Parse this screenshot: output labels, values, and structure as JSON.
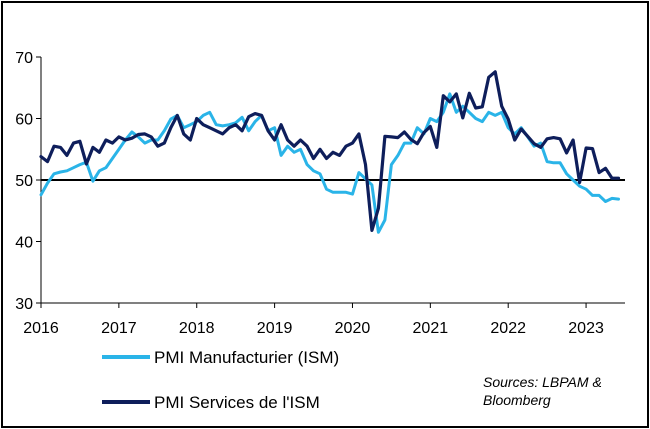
{
  "chart_data": {
    "type": "line",
    "title": "",
    "xlabel": "",
    "ylabel": "",
    "ylim": [
      30,
      70
    ],
    "xlim": [
      2016,
      2023.5
    ],
    "y_ticks": [
      30,
      40,
      50,
      60,
      70
    ],
    "y_tick_labels": [
      "30",
      "40",
      "50",
      "60",
      "70"
    ],
    "x_ticks": [
      2016,
      2017,
      2018,
      2019,
      2020,
      2021,
      2022,
      2023
    ],
    "x_tick_labels": [
      "2016",
      "2017",
      "2018",
      "2019",
      "2020",
      "2021",
      "2022",
      "2023"
    ],
    "reference_line": 50,
    "grid": false,
    "legend_position": "bottom-left",
    "source_lines": [
      "Sources: LBPAM &",
      "Bloomberg"
    ],
    "series": [
      {
        "name": "PMI Manufacturier (ISM)",
        "color": "#2AB4E8",
        "x": [
          2016,
          2016.083,
          2016.167,
          2016.25,
          2016.333,
          2016.417,
          2016.5,
          2016.583,
          2016.667,
          2016.75,
          2016.833,
          2016.917,
          2017,
          2017.083,
          2017.167,
          2017.25,
          2017.333,
          2017.417,
          2017.5,
          2017.583,
          2017.667,
          2017.75,
          2017.833,
          2017.917,
          2018,
          2018.083,
          2018.167,
          2018.25,
          2018.333,
          2018.417,
          2018.5,
          2018.583,
          2018.667,
          2018.75,
          2018.833,
          2018.917,
          2019,
          2019.083,
          2019.167,
          2019.25,
          2019.333,
          2019.417,
          2019.5,
          2019.583,
          2019.667,
          2019.75,
          2019.833,
          2019.917,
          2020,
          2020.083,
          2020.167,
          2020.25,
          2020.333,
          2020.417,
          2020.5,
          2020.583,
          2020.667,
          2020.75,
          2020.833,
          2020.917,
          2021,
          2021.083,
          2021.167,
          2021.25,
          2021.333,
          2021.417,
          2021.5,
          2021.583,
          2021.667,
          2021.75,
          2021.833,
          2021.917,
          2022,
          2022.083,
          2022.167,
          2022.25,
          2022.333,
          2022.417,
          2022.5,
          2022.583,
          2022.667,
          2022.75,
          2022.833,
          2022.917,
          2023,
          2023.083,
          2023.167,
          2023.25,
          2023.333,
          2023.417
        ],
        "values": [
          47.6,
          49.5,
          51.0,
          51.3,
          51.5,
          52.0,
          52.5,
          52.9,
          49.8,
          51.5,
          52.0,
          53.5,
          55.0,
          56.5,
          57.8,
          57.0,
          56.0,
          56.5,
          56.5,
          58.0,
          59.9,
          60.5,
          58.5,
          59.0,
          59.5,
          60.5,
          61.0,
          59.0,
          58.8,
          59.0,
          59.3,
          60.2,
          58.0,
          59.5,
          60.5,
          58.0,
          58.5,
          54.0,
          55.5,
          54.5,
          55.0,
          52.5,
          51.5,
          51.0,
          48.5,
          48.0,
          48.0,
          48.0,
          47.7,
          51.2,
          50.2,
          49.2,
          41.5,
          43.5,
          52.5,
          54.0,
          56.0,
          56.0,
          58.5,
          57.5,
          60.0,
          59.5,
          61.0,
          64.0,
          61.0,
          62.0,
          61.0,
          60.0,
          59.5,
          61.0,
          60.5,
          61.0,
          58.5,
          57.5,
          58.5,
          57.0,
          55.5,
          56.0,
          53.0,
          52.8,
          52.8,
          51.0,
          50.0,
          49.0,
          48.5,
          47.5,
          47.5,
          46.5,
          47.0,
          46.9
        ]
      },
      {
        "name": "PMI Services de l'ISM",
        "color": "#0E1E5B",
        "x": [
          2016,
          2016.083,
          2016.167,
          2016.25,
          2016.333,
          2016.417,
          2016.5,
          2016.583,
          2016.667,
          2016.75,
          2016.833,
          2016.917,
          2017,
          2017.083,
          2017.167,
          2017.25,
          2017.333,
          2017.417,
          2017.5,
          2017.583,
          2017.667,
          2017.75,
          2017.833,
          2017.917,
          2018,
          2018.083,
          2018.167,
          2018.25,
          2018.333,
          2018.417,
          2018.5,
          2018.583,
          2018.667,
          2018.75,
          2018.833,
          2018.917,
          2019,
          2019.083,
          2019.167,
          2019.25,
          2019.333,
          2019.417,
          2019.5,
          2019.583,
          2019.667,
          2019.75,
          2019.833,
          2019.917,
          2020,
          2020.083,
          2020.167,
          2020.25,
          2020.333,
          2020.417,
          2020.5,
          2020.583,
          2020.667,
          2020.75,
          2020.833,
          2020.917,
          2021,
          2021.083,
          2021.167,
          2021.25,
          2021.333,
          2021.417,
          2021.5,
          2021.583,
          2021.667,
          2021.75,
          2021.833,
          2021.917,
          2022,
          2022.083,
          2022.167,
          2022.25,
          2022.333,
          2022.417,
          2022.5,
          2022.583,
          2022.667,
          2022.75,
          2022.833,
          2022.917,
          2023,
          2023.083,
          2023.167,
          2023.25,
          2023.333,
          2023.417
        ],
        "values": [
          53.8,
          53.0,
          55.5,
          55.3,
          54.0,
          56.0,
          56.3,
          52.6,
          55.3,
          54.5,
          56.5,
          56.0,
          57.0,
          56.5,
          56.8,
          57.4,
          57.5,
          57.0,
          55.5,
          56.0,
          58.5,
          60.5,
          57.5,
          56.5,
          60.0,
          59.0,
          58.5,
          58.0,
          57.5,
          58.5,
          59.0,
          58.0,
          60.3,
          60.8,
          60.5,
          58.0,
          56.5,
          59.0,
          56.5,
          55.5,
          56.5,
          55.5,
          53.5,
          55.0,
          53.5,
          54.5,
          54.0,
          55.5,
          56.0,
          57.5,
          52.5,
          41.8,
          45.4,
          57.1,
          57.0,
          56.9,
          57.8,
          56.6,
          55.9,
          57.7,
          58.7,
          55.3,
          63.7,
          62.7,
          64.0,
          60.1,
          64.1,
          61.7,
          61.9,
          66.7,
          67.6,
          62.0,
          59.9,
          56.5,
          58.3,
          57.1,
          55.9,
          55.3,
          56.7,
          56.9,
          56.7,
          54.4,
          56.5,
          49.6,
          55.2,
          55.1,
          51.2,
          51.9,
          50.3,
          50.3
        ]
      }
    ]
  }
}
